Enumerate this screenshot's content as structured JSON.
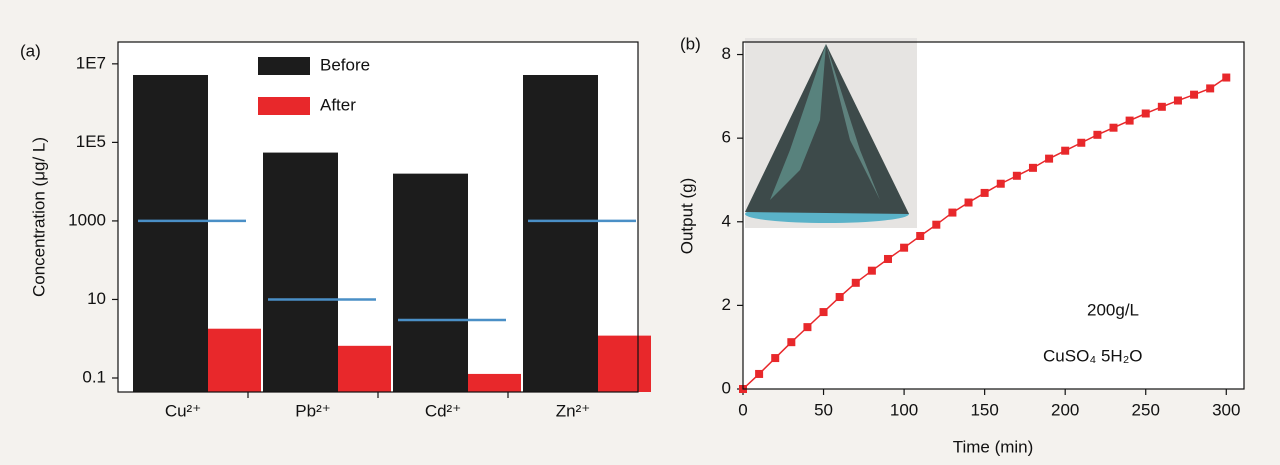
{
  "chart_data": [
    {
      "type": "bar",
      "panel": "(a)",
      "y_label": "Concentration (μg/ L)",
      "log_scale": true,
      "categories": [
        "Cu²⁺",
        "Pb²⁺",
        "Cd²⁺",
        "Zn²⁺"
      ],
      "series": [
        {
          "name": "Before",
          "color": "#1c1c1c",
          "values": [
            5200000,
            55000,
            16000,
            5200000
          ]
        },
        {
          "name": "After",
          "color": "#e8282b",
          "values": [
            1.8,
            0.66,
            0.127,
            1.2
          ]
        }
      ],
      "reference_lines": {
        "color": "#4a8fc6",
        "values": [
          1000,
          10,
          3,
          1000
        ]
      },
      "ylim": [
        0.044,
        36000000
      ],
      "yticks": [
        0.1,
        10,
        1000,
        {
          "value": 100000,
          "label": "1E5"
        },
        {
          "value": 10000000,
          "label": "1E7"
        }
      ]
    },
    {
      "type": "line",
      "panel": "(b)",
      "x_label": "Time (min)",
      "y_label": "Output (g)",
      "annotations": [
        "200g/L",
        "CuSO₄ 5H₂O"
      ],
      "x": [
        0,
        10,
        20,
        30,
        40,
        50,
        60,
        70,
        80,
        90,
        100,
        110,
        120,
        130,
        140,
        150,
        160,
        170,
        180,
        190,
        200,
        210,
        220,
        230,
        240,
        250,
        260,
        270,
        280,
        290,
        300
      ],
      "values": [
        0,
        0.36,
        0.74,
        1.12,
        1.48,
        1.84,
        2.2,
        2.54,
        2.83,
        3.11,
        3.38,
        3.66,
        3.93,
        4.22,
        4.46,
        4.69,
        4.91,
        5.1,
        5.29,
        5.51,
        5.7,
        5.89,
        6.08,
        6.25,
        6.42,
        6.59,
        6.75,
        6.9,
        7.04,
        7.19,
        7.45
      ],
      "color": "#e8282b",
      "xlim": [
        0,
        311
      ],
      "xticks": [
        0,
        50,
        100,
        150,
        200,
        250,
        300
      ],
      "ylim": [
        0,
        8.3
      ],
      "yticks": [
        0,
        2,
        4,
        6,
        8
      ]
    }
  ]
}
